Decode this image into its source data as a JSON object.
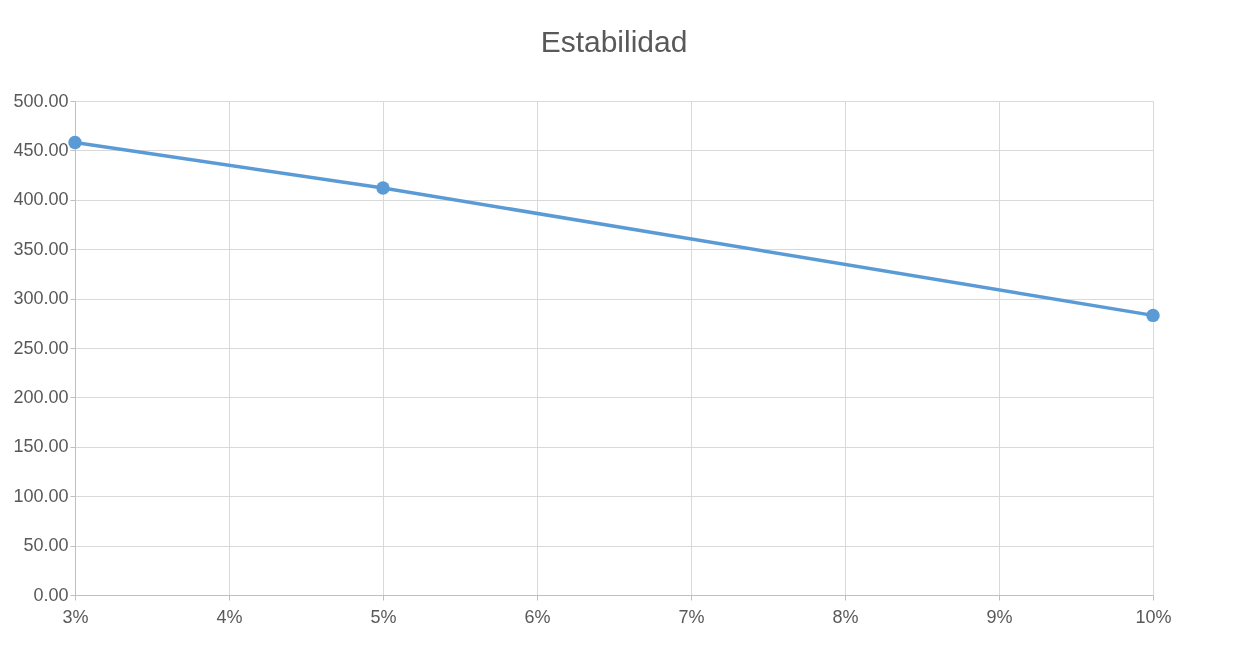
{
  "chart_data": {
    "type": "line",
    "title": "Estabilidad",
    "x": [
      3,
      5,
      10
    ],
    "series": [
      {
        "color": "#5b9bd5",
        "values": [
          458,
          412,
          283
        ]
      }
    ],
    "xlim": [
      3,
      10
    ],
    "xticks": [
      {
        "value": 3,
        "label": "3%"
      },
      {
        "value": 4,
        "label": "4%"
      },
      {
        "value": 5,
        "label": "5%"
      },
      {
        "value": 6,
        "label": "6%"
      },
      {
        "value": 7,
        "label": "7%"
      },
      {
        "value": 8,
        "label": "8%"
      },
      {
        "value": 9,
        "label": "9%"
      },
      {
        "value": 10,
        "label": "10%"
      }
    ],
    "ylim": [
      0,
      500
    ],
    "yticks": [
      {
        "value": 0,
        "label": "0.00"
      },
      {
        "value": 50,
        "label": "50.00"
      },
      {
        "value": 100,
        "label": "100.00"
      },
      {
        "value": 150,
        "label": "150.00"
      },
      {
        "value": 200,
        "label": "200.00"
      },
      {
        "value": 250,
        "label": "250.00"
      },
      {
        "value": 300,
        "label": "300.00"
      },
      {
        "value": 350,
        "label": "350.00"
      },
      {
        "value": 400,
        "label": "400.00"
      },
      {
        "value": 450,
        "label": "450.00"
      },
      {
        "value": 500,
        "label": "500.00"
      }
    ],
    "grid": true,
    "marker": "circle",
    "line_style": "solid"
  }
}
